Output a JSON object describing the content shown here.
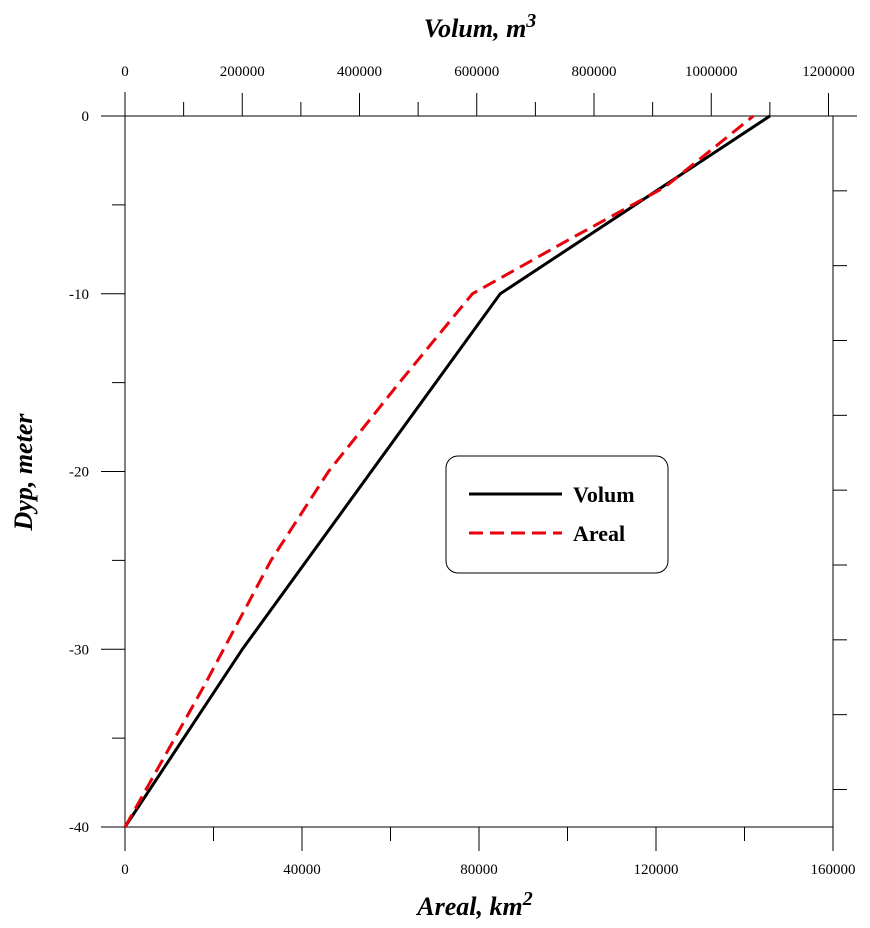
{
  "chart_data": {
    "type": "line",
    "top_axis": {
      "label_text": "Volum, m",
      "label_sup": "3",
      "range": [
        0,
        1200000
      ],
      "ticks": [
        0,
        200000,
        400000,
        600000,
        800000,
        1000000,
        1200000
      ],
      "tick_labels": [
        "0",
        "200000",
        "400000",
        "600000",
        "800000",
        "1000000",
        "1200000"
      ],
      "minor_step": 100000
    },
    "bottom_axis": {
      "label_text": "Areal, km",
      "label_sup": "2",
      "range": [
        0,
        160000
      ],
      "ticks": [
        0,
        40000,
        80000,
        120000,
        160000
      ],
      "tick_labels": [
        "0",
        "40000",
        "80000",
        "120000",
        "160000"
      ],
      "minor_step": 20000
    },
    "left_axis": {
      "label": "Dyp, meter",
      "range": [
        -40,
        0
      ],
      "ticks": [
        0,
        -10,
        -20,
        -30,
        -40
      ],
      "tick_labels": [
        "0",
        "-10",
        "-20",
        "-30",
        "-40"
      ],
      "minor_step": 5
    },
    "right_axis": {
      "range": [
        -40,
        0
      ],
      "minor_ticks": [
        -4.21,
        -8.42,
        -12.63,
        -16.84,
        -21.05,
        -25.26,
        -29.47,
        -33.68,
        -37.89
      ]
    },
    "series": [
      {
        "name": "Volum",
        "axis": "top",
        "color": "#000000",
        "style": "solid",
        "points": [
          [
            0,
            -40
          ],
          [
            200000,
            -30
          ],
          [
            640000,
            -10
          ],
          [
            1100000,
            0
          ]
        ]
      },
      {
        "name": "Areal",
        "axis": "bottom",
        "color": "#e8000b",
        "style": "dashed",
        "points": [
          [
            0,
            -40
          ],
          [
            18000,
            -32
          ],
          [
            33000,
            -25
          ],
          [
            46000,
            -20
          ],
          [
            62000,
            -15
          ],
          [
            78500,
            -10
          ],
          [
            100000,
            -7
          ],
          [
            122000,
            -4
          ],
          [
            142000,
            0
          ]
        ]
      }
    ],
    "legend": {
      "position": "center-right",
      "entries": [
        "Volum",
        "Areal"
      ]
    },
    "grid": false
  }
}
